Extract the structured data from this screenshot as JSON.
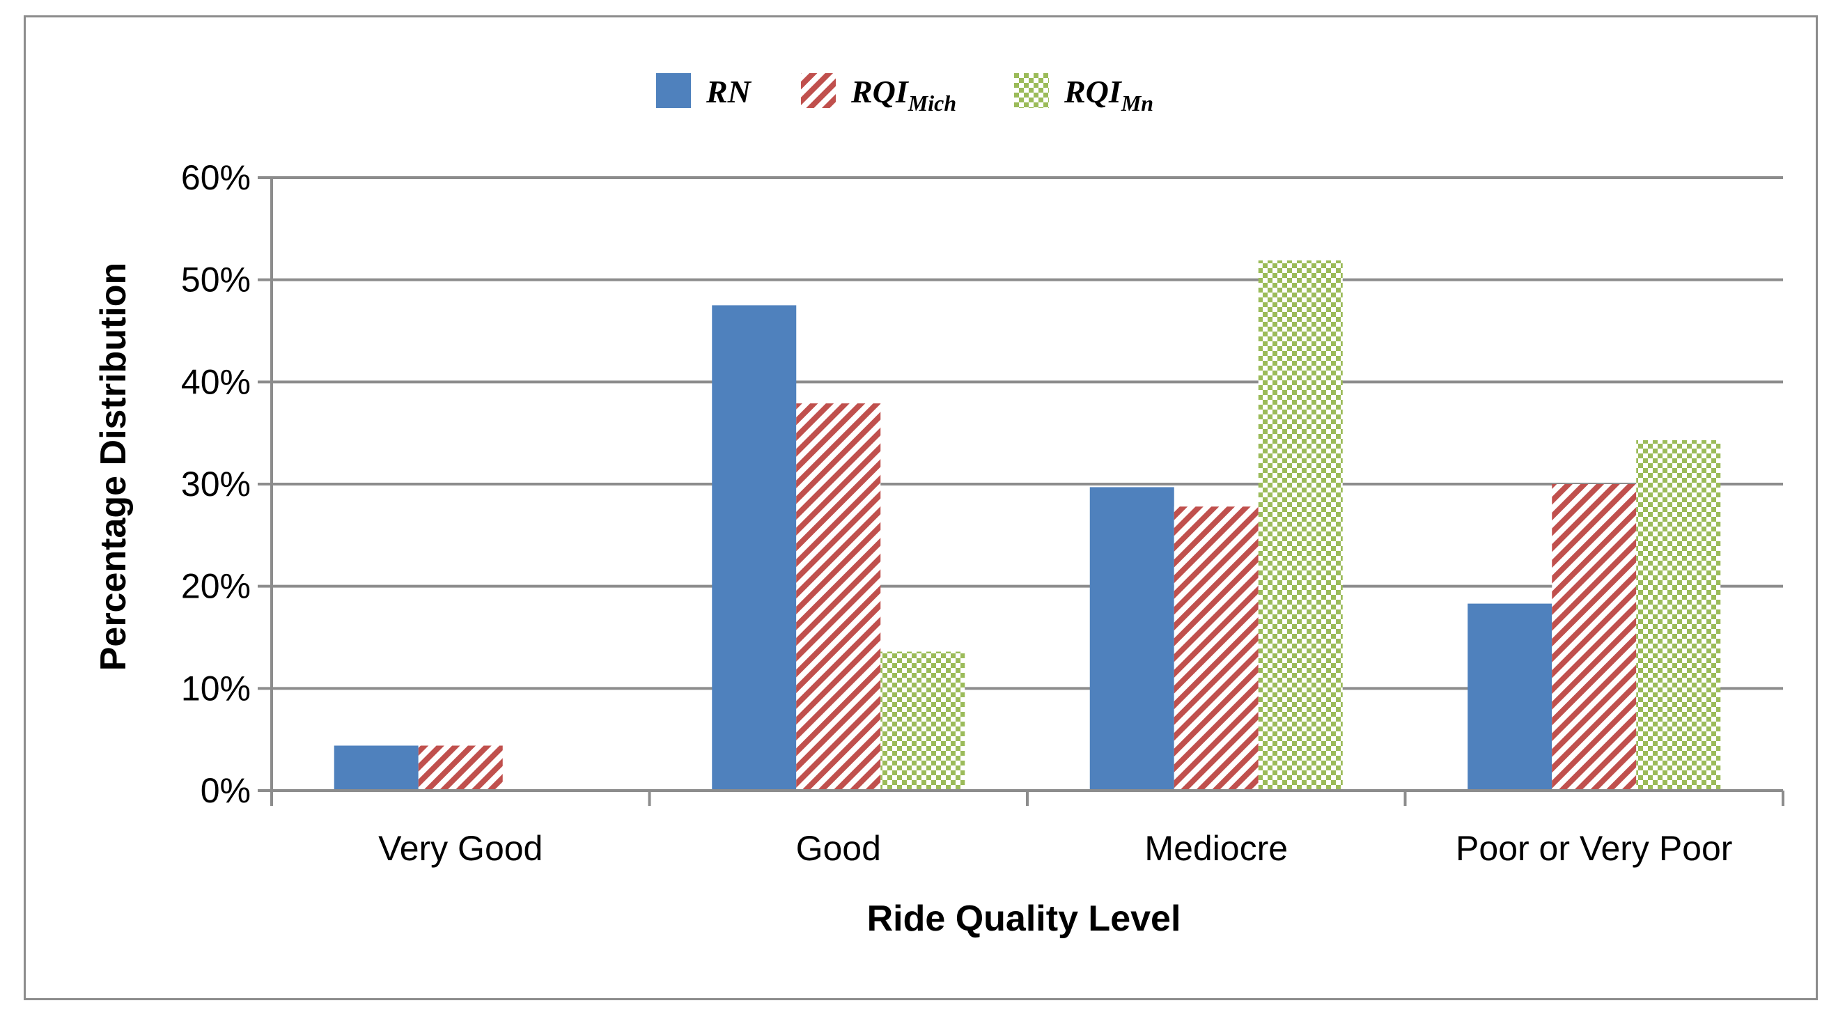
{
  "chart_data": {
    "type": "bar",
    "title": "",
    "xlabel": "Ride Quality Level",
    "ylabel": "Percentage Distribution",
    "categories": [
      "Very Good",
      "Good",
      "Mediocre",
      "Poor or Very Poor"
    ],
    "ylim": [
      0,
      60
    ],
    "yticks": [
      0,
      10,
      20,
      30,
      40,
      50,
      60
    ],
    "ytick_labels": [
      "0%",
      "10%",
      "20%",
      "30%",
      "40%",
      "50%",
      "60%"
    ],
    "grid": true,
    "legend_position": "top-center",
    "series": [
      {
        "name": "RN",
        "label_main": "RN",
        "label_sub": "",
        "color": "#4f81bd",
        "pattern": "solid",
        "values": [
          4.4,
          47.5,
          29.7,
          18.3
        ]
      },
      {
        "name": "RQI_Mich",
        "label_main": "RQI",
        "label_sub": "Mich",
        "color": "#c0504d",
        "pattern": "diagonal-stripes",
        "values": [
          4.4,
          37.9,
          27.8,
          30.0
        ]
      },
      {
        "name": "RQI_Mn",
        "label_main": "RQI",
        "label_sub": "Mn",
        "color": "#9bbb59",
        "pattern": "checker",
        "values": [
          0,
          13.6,
          51.9,
          34.3
        ]
      }
    ]
  }
}
